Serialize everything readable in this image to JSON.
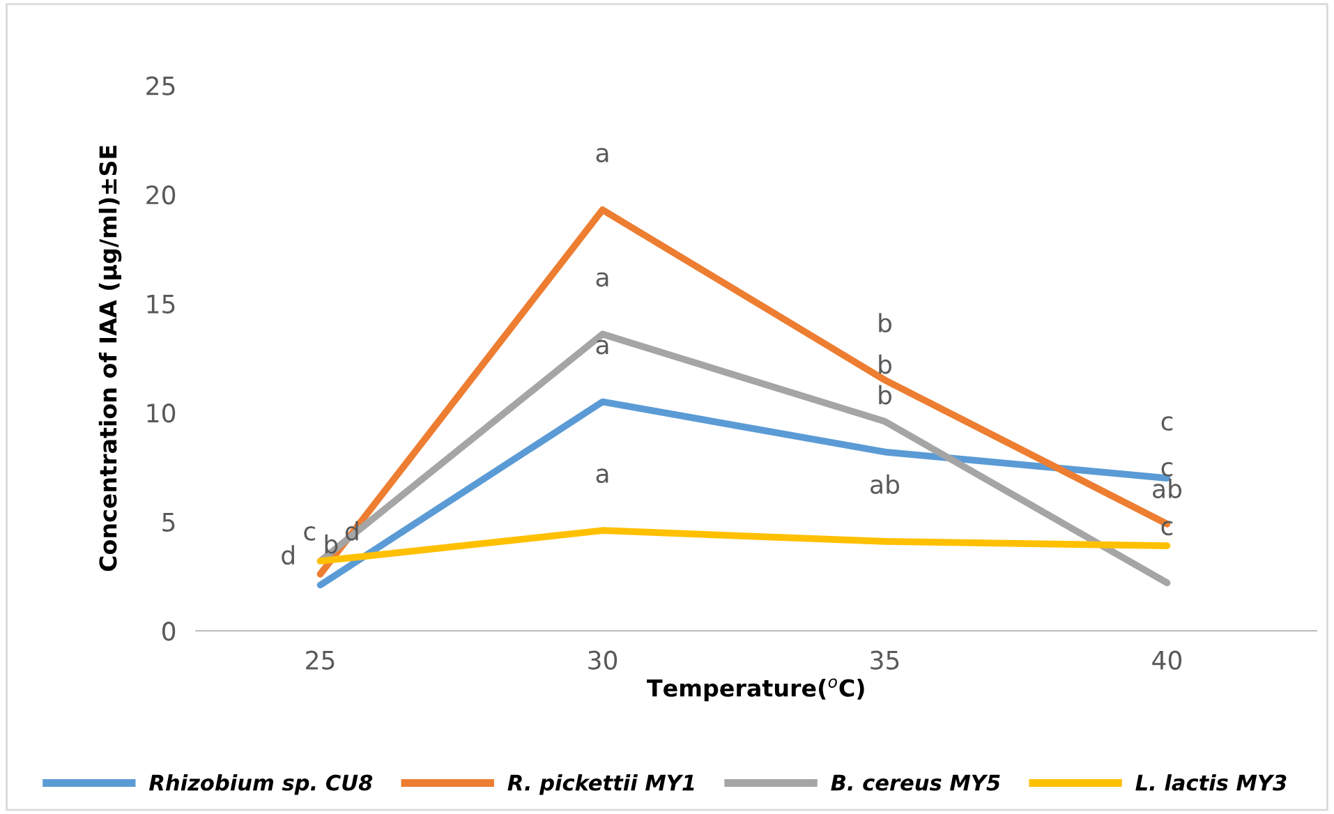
{
  "chart_data": {
    "type": "line",
    "xlabel": "Temperature($^{o}$C)",
    "ylabel": "Concentration of IAA (µg/ml)±SE",
    "categories": [
      "25",
      "30",
      "35",
      "40"
    ],
    "series": [
      {
        "name": "Rhizobium sp. CU8",
        "color": "#5b9bd5",
        "values": [
          2.1,
          10.5,
          8.2,
          7.0
        ]
      },
      {
        "name": "R. pickettii MY1",
        "color": "#ed7d31",
        "values": [
          2.6,
          19.3,
          11.5,
          4.9
        ]
      },
      {
        "name": "B. cereus MY5",
        "color": "#a5a5a5",
        "values": [
          3.2,
          13.6,
          9.6,
          2.2
        ]
      },
      {
        "name": "L. lactis MY3",
        "color": "#ffc000",
        "values": [
          3.2,
          4.6,
          4.1,
          3.9
        ]
      }
    ],
    "ylim": [
      0,
      25
    ],
    "yticks": [
      0,
      5,
      10,
      15,
      20,
      25
    ],
    "grid": false,
    "legend": "bottom",
    "marker": "none",
    "line_style": "solid",
    "annotations": [
      {
        "text": "d",
        "x": "25",
        "y": 2.1
      },
      {
        "text": "c",
        "x": "25",
        "y": 3.2
      },
      {
        "text": "b",
        "x": "25",
        "y": 2.6
      },
      {
        "text": "d",
        "x": "25",
        "y": 3.2
      },
      {
        "text": "a",
        "x": "30",
        "y": 19.3
      },
      {
        "text": "a",
        "x": "30",
        "y": 13.6
      },
      {
        "text": "a",
        "x": "30",
        "y": 10.5
      },
      {
        "text": "a",
        "x": "30",
        "y": 4.6
      },
      {
        "text": "b",
        "x": "35",
        "y": 11.5
      },
      {
        "text": "b",
        "x": "35",
        "y": 9.6
      },
      {
        "text": "b",
        "x": "35",
        "y": 8.2
      },
      {
        "text": "ab",
        "x": "35",
        "y": 4.1
      },
      {
        "text": "c",
        "x": "40",
        "y": 7.0
      },
      {
        "text": "c",
        "x": "40",
        "y": 4.9
      },
      {
        "text": "ab",
        "x": "40",
        "y": 3.9
      },
      {
        "text": "c",
        "x": "40",
        "y": 2.2
      }
    ]
  }
}
